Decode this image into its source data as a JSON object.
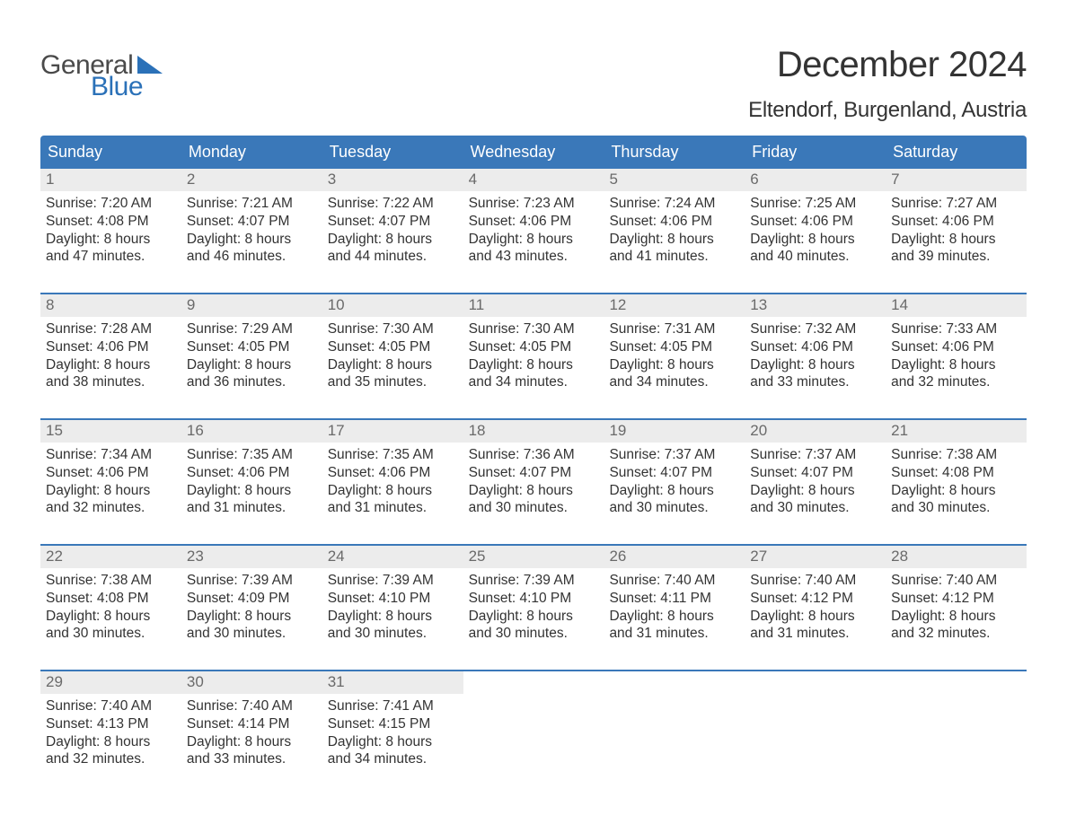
{
  "logo": {
    "text_general": "General",
    "text_blue": "Blue",
    "general_color": "#4a4a4a",
    "blue_color": "#2b71b8"
  },
  "title": "December 2024",
  "location": "Eltendorf, Burgenland, Austria",
  "colors": {
    "header_bg": "#3a78b9",
    "header_text": "#ffffff",
    "daynum_bg": "#ececec",
    "daynum_text": "#6a6a6a",
    "body_text": "#333333",
    "week_divider": "#3a78b9",
    "page_bg": "#ffffff"
  },
  "fonts": {
    "title_size": 40,
    "location_size": 24,
    "weekday_size": 18,
    "daynum_size": 17,
    "body_size": 15.5
  },
  "weekdays": [
    "Sunday",
    "Monday",
    "Tuesday",
    "Wednesday",
    "Thursday",
    "Friday",
    "Saturday"
  ],
  "weeks": [
    [
      {
        "n": "1",
        "sunrise": "Sunrise: 7:20 AM",
        "sunset": "Sunset: 4:08 PM",
        "d1": "Daylight: 8 hours",
        "d2": "and 47 minutes."
      },
      {
        "n": "2",
        "sunrise": "Sunrise: 7:21 AM",
        "sunset": "Sunset: 4:07 PM",
        "d1": "Daylight: 8 hours",
        "d2": "and 46 minutes."
      },
      {
        "n": "3",
        "sunrise": "Sunrise: 7:22 AM",
        "sunset": "Sunset: 4:07 PM",
        "d1": "Daylight: 8 hours",
        "d2": "and 44 minutes."
      },
      {
        "n": "4",
        "sunrise": "Sunrise: 7:23 AM",
        "sunset": "Sunset: 4:06 PM",
        "d1": "Daylight: 8 hours",
        "d2": "and 43 minutes."
      },
      {
        "n": "5",
        "sunrise": "Sunrise: 7:24 AM",
        "sunset": "Sunset: 4:06 PM",
        "d1": "Daylight: 8 hours",
        "d2": "and 41 minutes."
      },
      {
        "n": "6",
        "sunrise": "Sunrise: 7:25 AM",
        "sunset": "Sunset: 4:06 PM",
        "d1": "Daylight: 8 hours",
        "d2": "and 40 minutes."
      },
      {
        "n": "7",
        "sunrise": "Sunrise: 7:27 AM",
        "sunset": "Sunset: 4:06 PM",
        "d1": "Daylight: 8 hours",
        "d2": "and 39 minutes."
      }
    ],
    [
      {
        "n": "8",
        "sunrise": "Sunrise: 7:28 AM",
        "sunset": "Sunset: 4:06 PM",
        "d1": "Daylight: 8 hours",
        "d2": "and 38 minutes."
      },
      {
        "n": "9",
        "sunrise": "Sunrise: 7:29 AM",
        "sunset": "Sunset: 4:05 PM",
        "d1": "Daylight: 8 hours",
        "d2": "and 36 minutes."
      },
      {
        "n": "10",
        "sunrise": "Sunrise: 7:30 AM",
        "sunset": "Sunset: 4:05 PM",
        "d1": "Daylight: 8 hours",
        "d2": "and 35 minutes."
      },
      {
        "n": "11",
        "sunrise": "Sunrise: 7:30 AM",
        "sunset": "Sunset: 4:05 PM",
        "d1": "Daylight: 8 hours",
        "d2": "and 34 minutes."
      },
      {
        "n": "12",
        "sunrise": "Sunrise: 7:31 AM",
        "sunset": "Sunset: 4:05 PM",
        "d1": "Daylight: 8 hours",
        "d2": "and 34 minutes."
      },
      {
        "n": "13",
        "sunrise": "Sunrise: 7:32 AM",
        "sunset": "Sunset: 4:06 PM",
        "d1": "Daylight: 8 hours",
        "d2": "and 33 minutes."
      },
      {
        "n": "14",
        "sunrise": "Sunrise: 7:33 AM",
        "sunset": "Sunset: 4:06 PM",
        "d1": "Daylight: 8 hours",
        "d2": "and 32 minutes."
      }
    ],
    [
      {
        "n": "15",
        "sunrise": "Sunrise: 7:34 AM",
        "sunset": "Sunset: 4:06 PM",
        "d1": "Daylight: 8 hours",
        "d2": "and 32 minutes."
      },
      {
        "n": "16",
        "sunrise": "Sunrise: 7:35 AM",
        "sunset": "Sunset: 4:06 PM",
        "d1": "Daylight: 8 hours",
        "d2": "and 31 minutes."
      },
      {
        "n": "17",
        "sunrise": "Sunrise: 7:35 AM",
        "sunset": "Sunset: 4:06 PM",
        "d1": "Daylight: 8 hours",
        "d2": "and 31 minutes."
      },
      {
        "n": "18",
        "sunrise": "Sunrise: 7:36 AM",
        "sunset": "Sunset: 4:07 PM",
        "d1": "Daylight: 8 hours",
        "d2": "and 30 minutes."
      },
      {
        "n": "19",
        "sunrise": "Sunrise: 7:37 AM",
        "sunset": "Sunset: 4:07 PM",
        "d1": "Daylight: 8 hours",
        "d2": "and 30 minutes."
      },
      {
        "n": "20",
        "sunrise": "Sunrise: 7:37 AM",
        "sunset": "Sunset: 4:07 PM",
        "d1": "Daylight: 8 hours",
        "d2": "and 30 minutes."
      },
      {
        "n": "21",
        "sunrise": "Sunrise: 7:38 AM",
        "sunset": "Sunset: 4:08 PM",
        "d1": "Daylight: 8 hours",
        "d2": "and 30 minutes."
      }
    ],
    [
      {
        "n": "22",
        "sunrise": "Sunrise: 7:38 AM",
        "sunset": "Sunset: 4:08 PM",
        "d1": "Daylight: 8 hours",
        "d2": "and 30 minutes."
      },
      {
        "n": "23",
        "sunrise": "Sunrise: 7:39 AM",
        "sunset": "Sunset: 4:09 PM",
        "d1": "Daylight: 8 hours",
        "d2": "and 30 minutes."
      },
      {
        "n": "24",
        "sunrise": "Sunrise: 7:39 AM",
        "sunset": "Sunset: 4:10 PM",
        "d1": "Daylight: 8 hours",
        "d2": "and 30 minutes."
      },
      {
        "n": "25",
        "sunrise": "Sunrise: 7:39 AM",
        "sunset": "Sunset: 4:10 PM",
        "d1": "Daylight: 8 hours",
        "d2": "and 30 minutes."
      },
      {
        "n": "26",
        "sunrise": "Sunrise: 7:40 AM",
        "sunset": "Sunset: 4:11 PM",
        "d1": "Daylight: 8 hours",
        "d2": "and 31 minutes."
      },
      {
        "n": "27",
        "sunrise": "Sunrise: 7:40 AM",
        "sunset": "Sunset: 4:12 PM",
        "d1": "Daylight: 8 hours",
        "d2": "and 31 minutes."
      },
      {
        "n": "28",
        "sunrise": "Sunrise: 7:40 AM",
        "sunset": "Sunset: 4:12 PM",
        "d1": "Daylight: 8 hours",
        "d2": "and 32 minutes."
      }
    ],
    [
      {
        "n": "29",
        "sunrise": "Sunrise: 7:40 AM",
        "sunset": "Sunset: 4:13 PM",
        "d1": "Daylight: 8 hours",
        "d2": "and 32 minutes."
      },
      {
        "n": "30",
        "sunrise": "Sunrise: 7:40 AM",
        "sunset": "Sunset: 4:14 PM",
        "d1": "Daylight: 8 hours",
        "d2": "and 33 minutes."
      },
      {
        "n": "31",
        "sunrise": "Sunrise: 7:41 AM",
        "sunset": "Sunset: 4:15 PM",
        "d1": "Daylight: 8 hours",
        "d2": "and 34 minutes."
      },
      {
        "empty": true
      },
      {
        "empty": true
      },
      {
        "empty": true
      },
      {
        "empty": true
      }
    ]
  ]
}
